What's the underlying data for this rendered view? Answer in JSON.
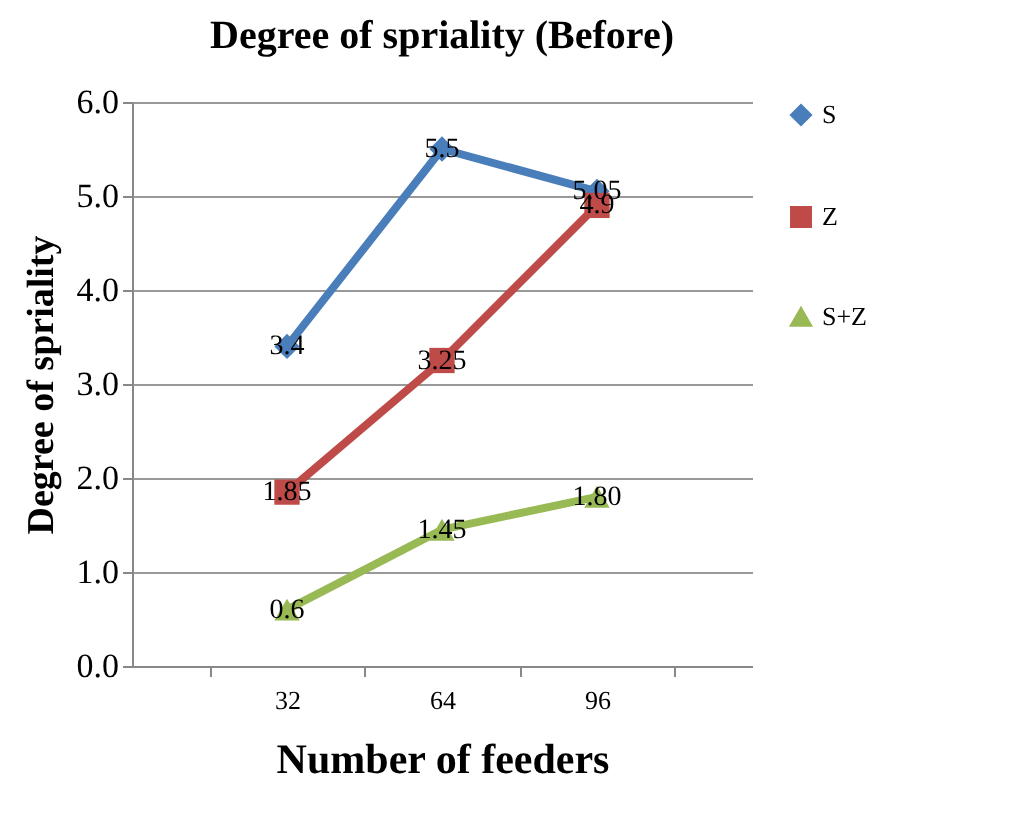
{
  "chart_data": {
    "type": "line",
    "title": "Degree of spriality (Before)",
    "xlabel": "Number of feeders",
    "ylabel": "Degree of spriality",
    "categories": [
      "32",
      "64",
      "96"
    ],
    "series": [
      {
        "name": "S",
        "color": "#4a7ebb",
        "marker": "diamond",
        "values": [
          3.4,
          5.5,
          5.05
        ],
        "value_labels": [
          "3.4",
          "5.5",
          "5.05"
        ]
      },
      {
        "name": "Z",
        "color": "#be4b48",
        "marker": "square",
        "values": [
          1.85,
          3.25,
          4.9
        ],
        "value_labels": [
          "1.85",
          "3.25",
          "4.9"
        ]
      },
      {
        "name": "S+Z",
        "color": "#98b954",
        "marker": "triangle",
        "values": [
          0.6,
          1.45,
          1.8
        ],
        "value_labels": [
          "0.6",
          "1.45",
          "1.80"
        ]
      }
    ],
    "ylim": [
      0,
      6
    ],
    "yticks": [
      {
        "value": 0,
        "label": "0.0"
      },
      {
        "value": 1,
        "label": "1.0"
      },
      {
        "value": 2,
        "label": "2.0"
      },
      {
        "value": 3,
        "label": "3.0"
      },
      {
        "value": 4,
        "label": "4.0"
      },
      {
        "value": 5,
        "label": "5.0"
      },
      {
        "value": 6,
        "label": "6.0"
      }
    ],
    "grid": "y",
    "legend": "right"
  }
}
